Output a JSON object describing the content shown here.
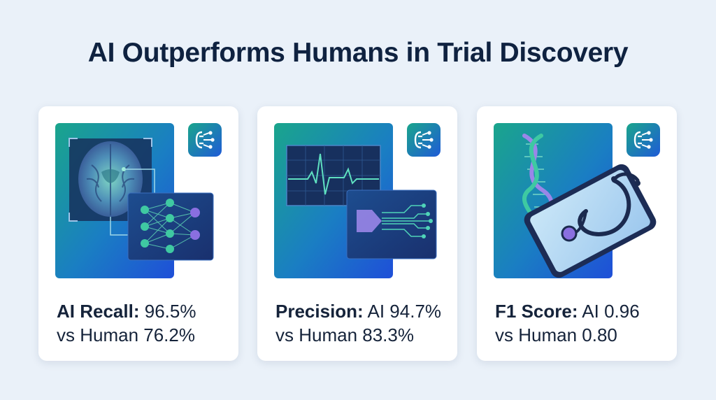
{
  "page": {
    "title": "AI Outperforms Humans in Trial Discovery"
  },
  "cards": [
    {
      "label": "AI Recall:",
      "value": "96.5%",
      "comparison": "vs Human 76.2%",
      "illustration": "brain-scan-neural-network",
      "icon": "ai-circuit-icon"
    },
    {
      "label": "Precision:",
      "value": "AI 94.7%",
      "comparison": "vs Human 83.3%",
      "illustration": "ecg-waveform-signal-processor",
      "icon": "ai-circuit-icon"
    },
    {
      "label": "F1 Score:",
      "value": "AI 0.96",
      "comparison": "vs Human 0.80",
      "illustration": "dna-helix-tablet-stethoscope",
      "icon": "ai-circuit-icon"
    }
  ],
  "colors": {
    "background": "#eaf1f9",
    "title": "#0f2240",
    "teal": "#1ea58f",
    "blue": "#1f5bd6",
    "purple": "#8a6fe0"
  }
}
